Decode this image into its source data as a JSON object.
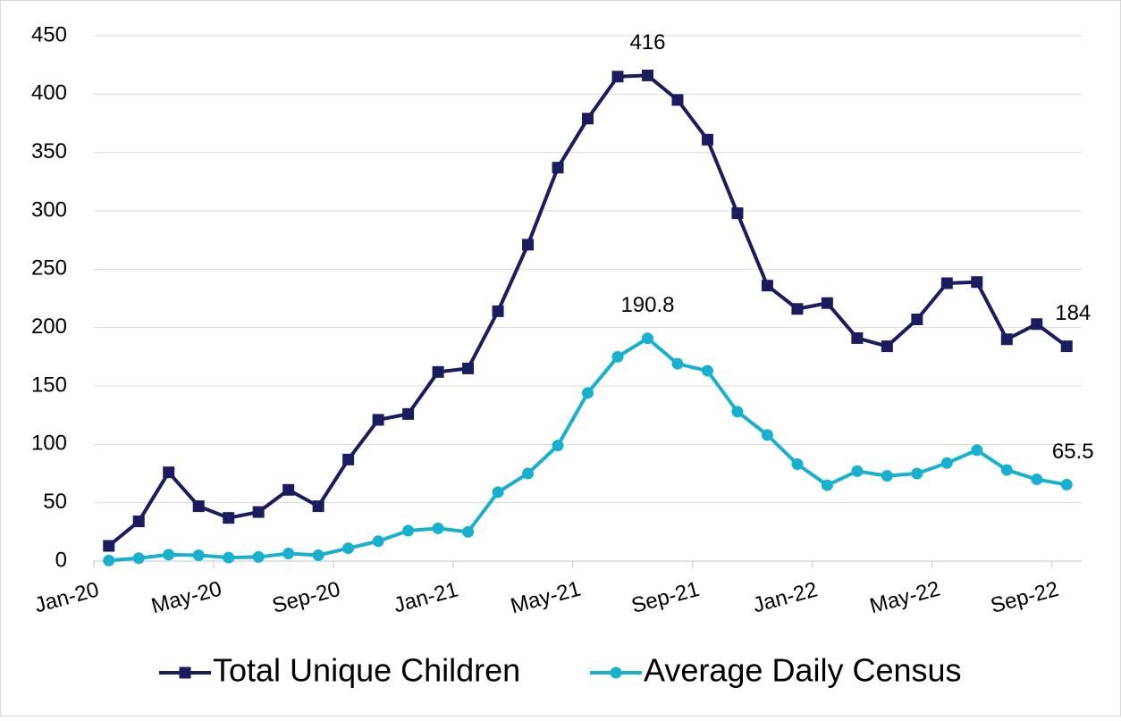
{
  "chart_data": {
    "type": "line",
    "categories": [
      "Jan-20",
      null,
      null,
      null,
      "May-20",
      null,
      null,
      null,
      "Sep-20",
      null,
      null,
      null,
      "Jan-21",
      null,
      null,
      null,
      "May-21",
      null,
      null,
      null,
      "Sep-21",
      null,
      null,
      null,
      "Jan-22",
      null,
      null,
      null,
      "May-22",
      null,
      null,
      null,
      "Sep-22"
    ],
    "series": [
      {
        "name": "Total Unique Children",
        "color": "#1b1b5f",
        "marker": "square",
        "values": [
          13,
          34,
          76,
          47,
          37,
          42,
          61,
          47,
          87,
          121,
          126,
          162,
          165,
          214,
          271,
          337,
          379,
          415,
          416,
          395,
          361,
          298,
          236,
          216,
          221,
          191,
          184,
          207,
          238,
          239,
          190,
          203,
          184
        ],
        "value_labels": [
          null,
          null,
          null,
          null,
          null,
          null,
          null,
          null,
          null,
          null,
          null,
          null,
          null,
          null,
          null,
          null,
          null,
          null,
          "416",
          null,
          null,
          null,
          null,
          null,
          null,
          null,
          null,
          null,
          null,
          null,
          null,
          null,
          "184"
        ]
      },
      {
        "name": "Average Daily Census",
        "color": "#17b1cf",
        "marker": "circle",
        "values": [
          0.5,
          2.5,
          5.5,
          5,
          3,
          3.5,
          6.5,
          5,
          11,
          17,
          26,
          28,
          25,
          59,
          75,
          99,
          144,
          175,
          190.8,
          169,
          163,
          128,
          108,
          83,
          65,
          77,
          73,
          75,
          84,
          95,
          78,
          70,
          65.5
        ],
        "value_labels": [
          null,
          null,
          null,
          null,
          null,
          null,
          null,
          null,
          null,
          null,
          null,
          null,
          null,
          null,
          null,
          null,
          null,
          null,
          "190.8",
          null,
          null,
          null,
          null,
          null,
          null,
          null,
          null,
          null,
          null,
          null,
          null,
          null,
          "65.5"
        ]
      }
    ],
    "ylim": [
      0,
      450
    ],
    "yticks": [
      0,
      50,
      100,
      150,
      200,
      250,
      300,
      350,
      400,
      450
    ],
    "grid": true,
    "legend": "bottom"
  }
}
